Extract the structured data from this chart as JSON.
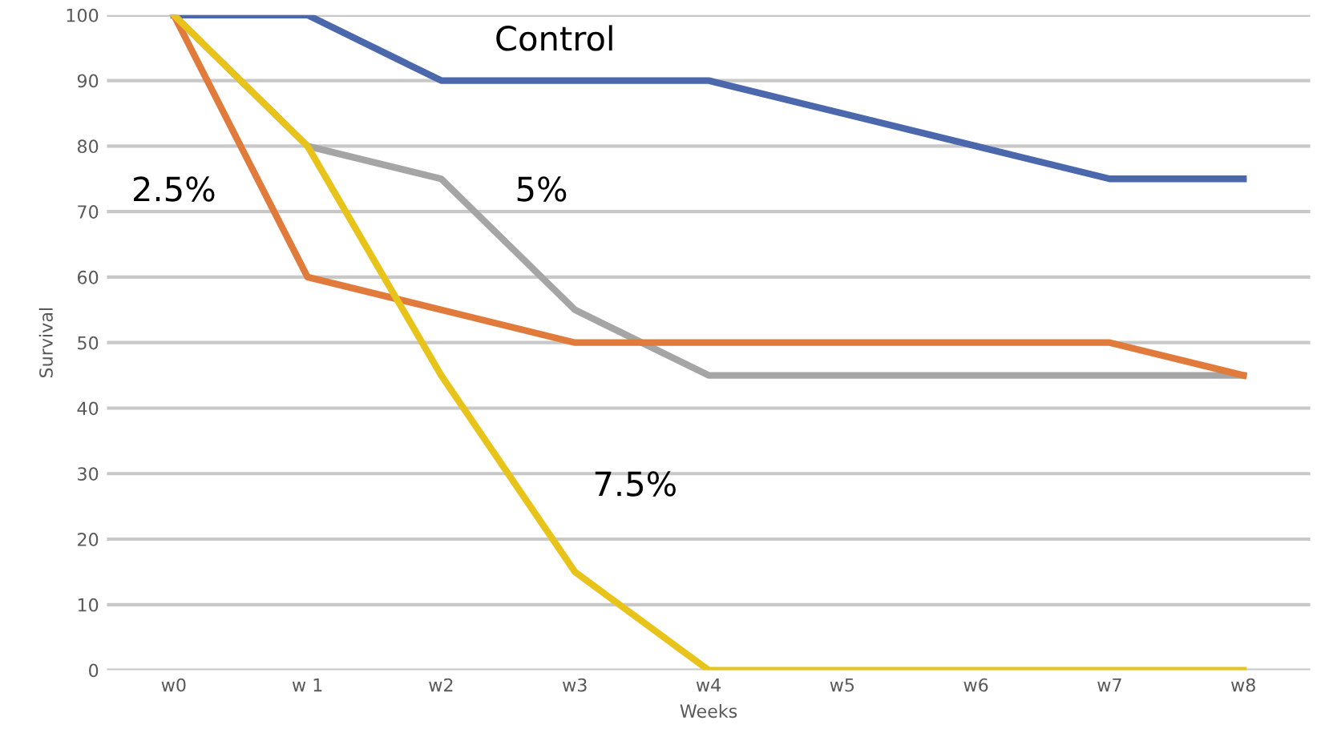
{
  "chart_data": {
    "type": "line",
    "xlabel": "Weeks",
    "ylabel": "Survival",
    "categories": [
      "w0",
      "w 1",
      "w2",
      "w3",
      "w4",
      "w5",
      "w6",
      "w7",
      "w8"
    ],
    "series": [
      {
        "name": "Control",
        "color": "#4a68ab",
        "values": [
          100,
          100,
          90,
          90,
          90,
          85,
          80,
          75,
          75
        ]
      },
      {
        "name": "5%",
        "color": "#a5a5a5",
        "values": [
          100,
          80,
          75,
          55,
          45,
          45,
          45,
          45,
          45
        ]
      },
      {
        "name": "2.5%",
        "color": "#e07b3c",
        "values": [
          100,
          60,
          55,
          50,
          50,
          50,
          50,
          50,
          45
        ]
      },
      {
        "name": "7.5%",
        "color": "#e8c41a",
        "values": [
          100,
          80,
          45,
          15,
          0,
          0,
          0,
          0,
          0
        ]
      }
    ],
    "ylim": [
      0,
      100
    ],
    "yticks": [
      0,
      10,
      20,
      30,
      40,
      50,
      60,
      70,
      80,
      90,
      100
    ],
    "grid": "y",
    "marker": "none",
    "line_style": "solid"
  }
}
